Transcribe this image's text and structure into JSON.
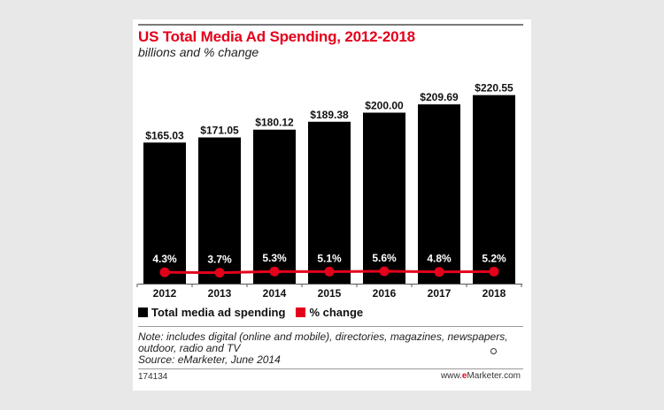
{
  "chart_data": {
    "type": "bar",
    "title": "US Total Media Ad Spending, 2012-2018",
    "subtitle": "billions and % change",
    "categories": [
      "2012",
      "2013",
      "2014",
      "2015",
      "2016",
      "2017",
      "2018"
    ],
    "series": [
      {
        "name": "Total media ad spending",
        "type": "bar",
        "values": [
          165.03,
          171.05,
          180.12,
          189.38,
          200.0,
          209.69,
          220.55
        ],
        "labels": [
          "$165.03",
          "$171.05",
          "$180.12",
          "$189.38",
          "$200.00",
          "$209.69",
          "$220.55"
        ]
      },
      {
        "name": "% change",
        "type": "line",
        "values": [
          4.3,
          3.7,
          5.3,
          5.1,
          5.6,
          4.8,
          5.2
        ],
        "labels": [
          "4.3%",
          "3.7%",
          "5.3%",
          "5.1%",
          "5.6%",
          "4.8%",
          "5.2%"
        ]
      }
    ],
    "xlabel": "",
    "ylabel": "",
    "ylim": [
      0,
      230
    ],
    "grid": false,
    "legend": "bottom-left"
  },
  "legend": {
    "spend_label": "Total media ad spending",
    "change_label": "% change"
  },
  "note": "Note: includes digital (online and mobile), directories, magazines, newspapers, outdoor, radio and TV",
  "source": "Source: eMarketer, June 2014",
  "chart_id": "174134",
  "brand": {
    "prefix": "www.",
    "mark": "e",
    "suffix": "Marketer.com"
  },
  "colors": {
    "bar": "#000000",
    "line": "#e3001b",
    "title": "#e3001b"
  }
}
